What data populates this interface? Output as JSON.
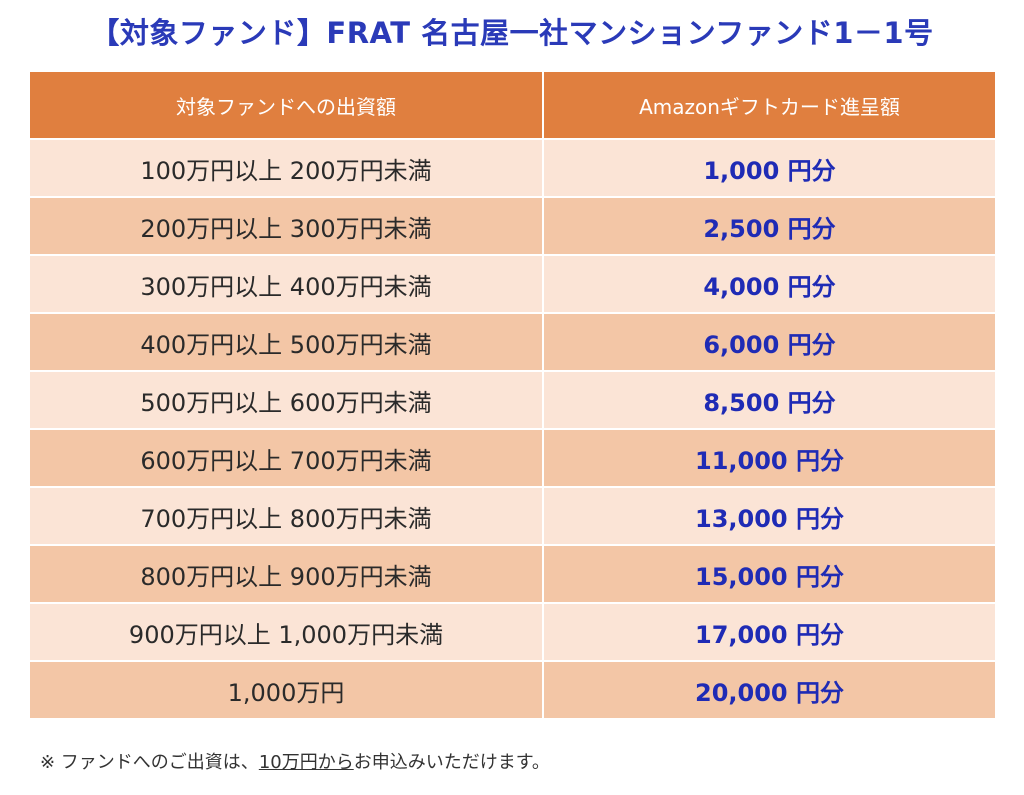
{
  "title": "【対象ファンド】FRAT 名古屋一社マンションファンド1－1号",
  "table": {
    "headers": [
      "対象ファンドへの出資額",
      "Amazonギフトカード進呈額"
    ],
    "rows": [
      {
        "amount": "100万円以上 200万円未満",
        "reward": "1,000 円分"
      },
      {
        "amount": "200万円以上 300万円未満",
        "reward": "2,500 円分"
      },
      {
        "amount": "300万円以上 400万円未満",
        "reward": "4,000 円分"
      },
      {
        "amount": "400万円以上 500万円未満",
        "reward": "6,000 円分"
      },
      {
        "amount": "500万円以上 600万円未満",
        "reward": "8,500 円分"
      },
      {
        "amount": "600万円以上 700万円未満",
        "reward": "11,000 円分"
      },
      {
        "amount": "700万円以上 800万円未満",
        "reward": "13,000 円分"
      },
      {
        "amount": "800万円以上 900万円未満",
        "reward": "15,000 円分"
      },
      {
        "amount": "900万円以上 1,000万円未満",
        "reward": "17,000 円分"
      },
      {
        "amount": "1,000万円",
        "reward": "20,000 円分"
      }
    ]
  },
  "note": {
    "prefix": "※ ファンドへのご出資は、",
    "underlined": "10万円から",
    "suffix": "お申込みいただけます。"
  },
  "colors": {
    "title": "#2a3ab8",
    "header_bg": "#e07f3f",
    "row_light": "#fbe4d6",
    "row_dark": "#f3c6a6",
    "reward_text": "#1f2bb5"
  }
}
